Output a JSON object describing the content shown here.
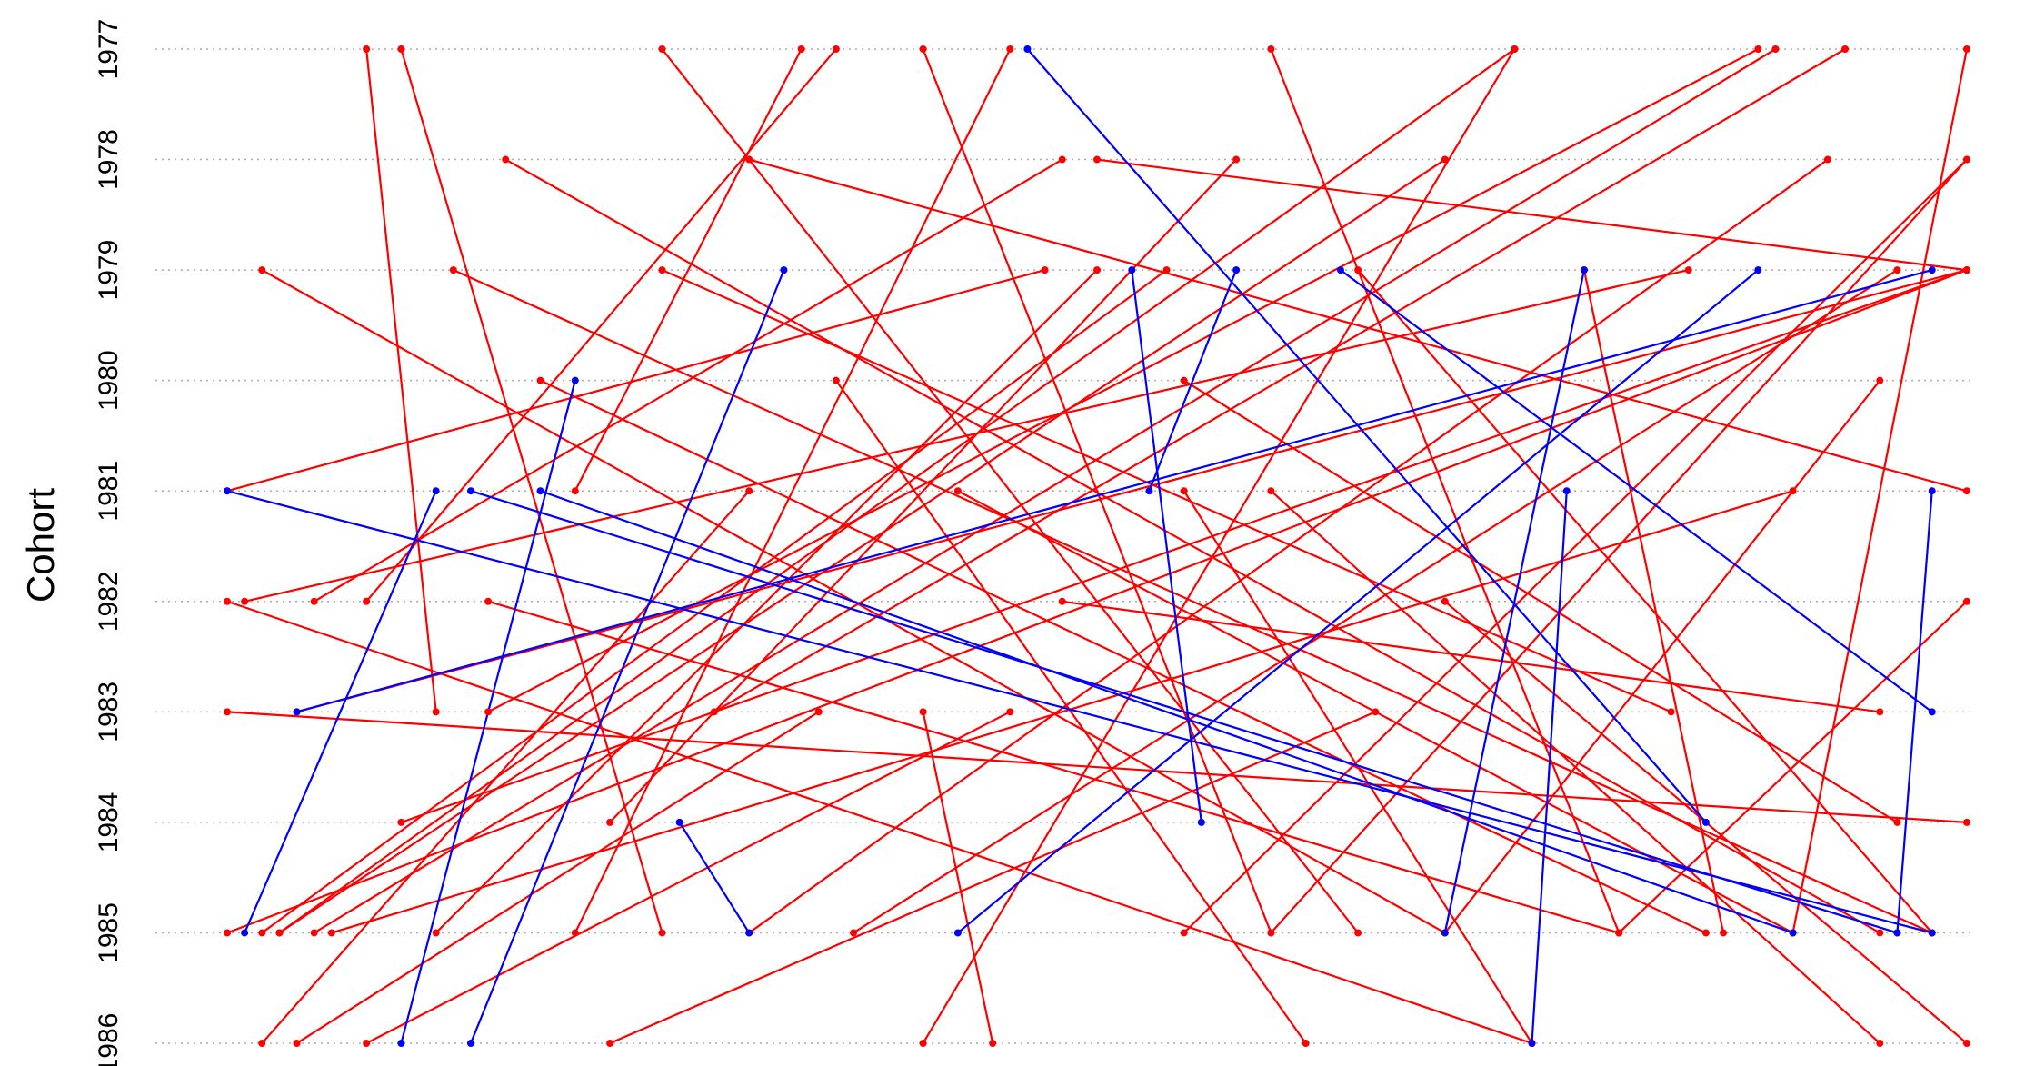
{
  "chart_data": {
    "type": "network",
    "ylabel": "Cohort",
    "xlim": [
      0,
      100
    ],
    "ylim": [
      1977,
      1986
    ],
    "yticks": [
      1977,
      1978,
      1979,
      1980,
      1981,
      1982,
      1983,
      1984,
      1985,
      1986
    ],
    "grid": true,
    "series": [
      {
        "color": "#ff0000",
        "x1": [
          3,
          20,
          8,
          10,
          16,
          30,
          35,
          40,
          45,
          50,
          54,
          60,
          70,
          74,
          88,
          89,
          100,
          100,
          100,
          100,
          92,
          84,
          90,
          2,
          13,
          25,
          18,
          0,
          5,
          0,
          4,
          2,
          8,
          22,
          44,
          75,
          95,
          100,
          28,
          36,
          60,
          70,
          80,
          65,
          55,
          42,
          10,
          15,
          48,
          25,
          0,
          35,
          12,
          78,
          58
        ],
        "y1": [
          1985,
          1981,
          1977,
          1977,
          1978,
          1978,
          1977,
          1977,
          1977,
          1978,
          1979,
          1977,
          1978,
          1977,
          1977,
          1977,
          1977,
          1978,
          1979,
          1979,
          1978,
          1979,
          1981,
          1979,
          1979,
          1979,
          1980,
          1981,
          1982,
          1982,
          1986,
          1986,
          1986,
          1986,
          1986,
          1986,
          1986,
          1986,
          1983,
          1985,
          1985,
          1985,
          1985,
          1979,
          1980,
          1981,
          1984,
          1982,
          1982,
          1977,
          1983,
          1980,
          1985,
          1979,
          1978
        ],
        "x2": [
          74,
          33,
          12,
          25,
          95,
          100,
          8,
          60,
          20,
          100,
          2,
          80,
          3,
          40,
          15,
          5,
          90,
          55,
          0,
          4,
          30,
          1,
          6,
          70,
          98,
          83,
          85,
          47,
          48,
          75,
          34,
          30,
          45,
          66,
          40,
          55,
          60,
          70,
          93,
          96,
          100,
          95,
          100,
          98,
          96,
          90,
          100,
          80,
          95,
          65,
          100,
          62,
          50,
          86,
          22
        ],
        "y2": [
          1977,
          1977,
          1983,
          1985,
          1985,
          1981,
          1982,
          1985,
          1985,
          1979,
          1985,
          1985,
          1985,
          1986,
          1983,
          1985,
          1985,
          1985,
          1985,
          1983,
          1985,
          1982,
          1985,
          1985,
          1985,
          1983,
          1985,
          1979,
          1978,
          1986,
          1983,
          1981,
          1983,
          1983,
          1983,
          1981,
          1981,
          1982,
          1977,
          1979,
          1978,
          1980,
          1982,
          1985,
          1984,
          1985,
          1979,
          1985,
          1983,
          1985,
          1984,
          1986,
          1979,
          1985,
          1984
        ]
      },
      {
        "color": "#0000ff",
        "x1": [
          46,
          0,
          14,
          18,
          1,
          10,
          14,
          4,
          75,
          56,
          26,
          53,
          64,
          42,
          70,
          96
        ],
        "y1": [
          1977,
          1981,
          1981,
          1981,
          1985,
          1986,
          1986,
          1983,
          1986,
          1984,
          1984,
          1981,
          1979,
          1985,
          1985,
          1985
        ],
        "x2": [
          85,
          98,
          96,
          90,
          12,
          20,
          32,
          98,
          77,
          52,
          30,
          58,
          98,
          88,
          78,
          98
        ],
        "y2": [
          1984,
          1985,
          1985,
          1985,
          1981,
          1980,
          1979,
          1979,
          1981,
          1979,
          1985,
          1979,
          1983,
          1979,
          1979,
          1981
        ]
      }
    ]
  }
}
